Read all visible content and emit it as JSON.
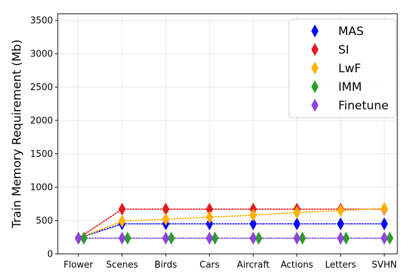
{
  "chart_data": {
    "type": "line",
    "title": "",
    "xlabel": "",
    "ylabel": "Train Memory Requirement (Mb)",
    "categories": [
      "Flower",
      "Scenes",
      "Birds",
      "Cars",
      "Aircraft",
      "Actions",
      "Letters",
      "SVHN"
    ],
    "ylim": [
      0,
      3600
    ],
    "yticks": [
      0,
      500,
      1000,
      1500,
      2000,
      2500,
      3000,
      3500
    ],
    "grid": true,
    "legend_position": "top-right",
    "marker": "diamond",
    "line_style": "dotted",
    "series": [
      {
        "name": "MAS",
        "color": "#0a0af0",
        "values": [
          235,
          450,
          450,
          450,
          450,
          450,
          450,
          450
        ]
      },
      {
        "name": "SI",
        "color": "#e31a1c",
        "values": [
          235,
          670,
          670,
          670,
          670,
          670,
          670,
          670
        ]
      },
      {
        "name": "LwF",
        "color": "#ffb000",
        "values": [
          235,
          490,
          520,
          550,
          580,
          620,
          650,
          680
        ]
      },
      {
        "name": "IMM",
        "color": "#2e9b2e",
        "values": [
          235,
          235,
          235,
          235,
          235,
          235,
          235,
          235
        ]
      },
      {
        "name": "Finetune",
        "color": "#8e44dd",
        "values": [
          235,
          235,
          235,
          235,
          235,
          235,
          235,
          235
        ]
      }
    ]
  }
}
